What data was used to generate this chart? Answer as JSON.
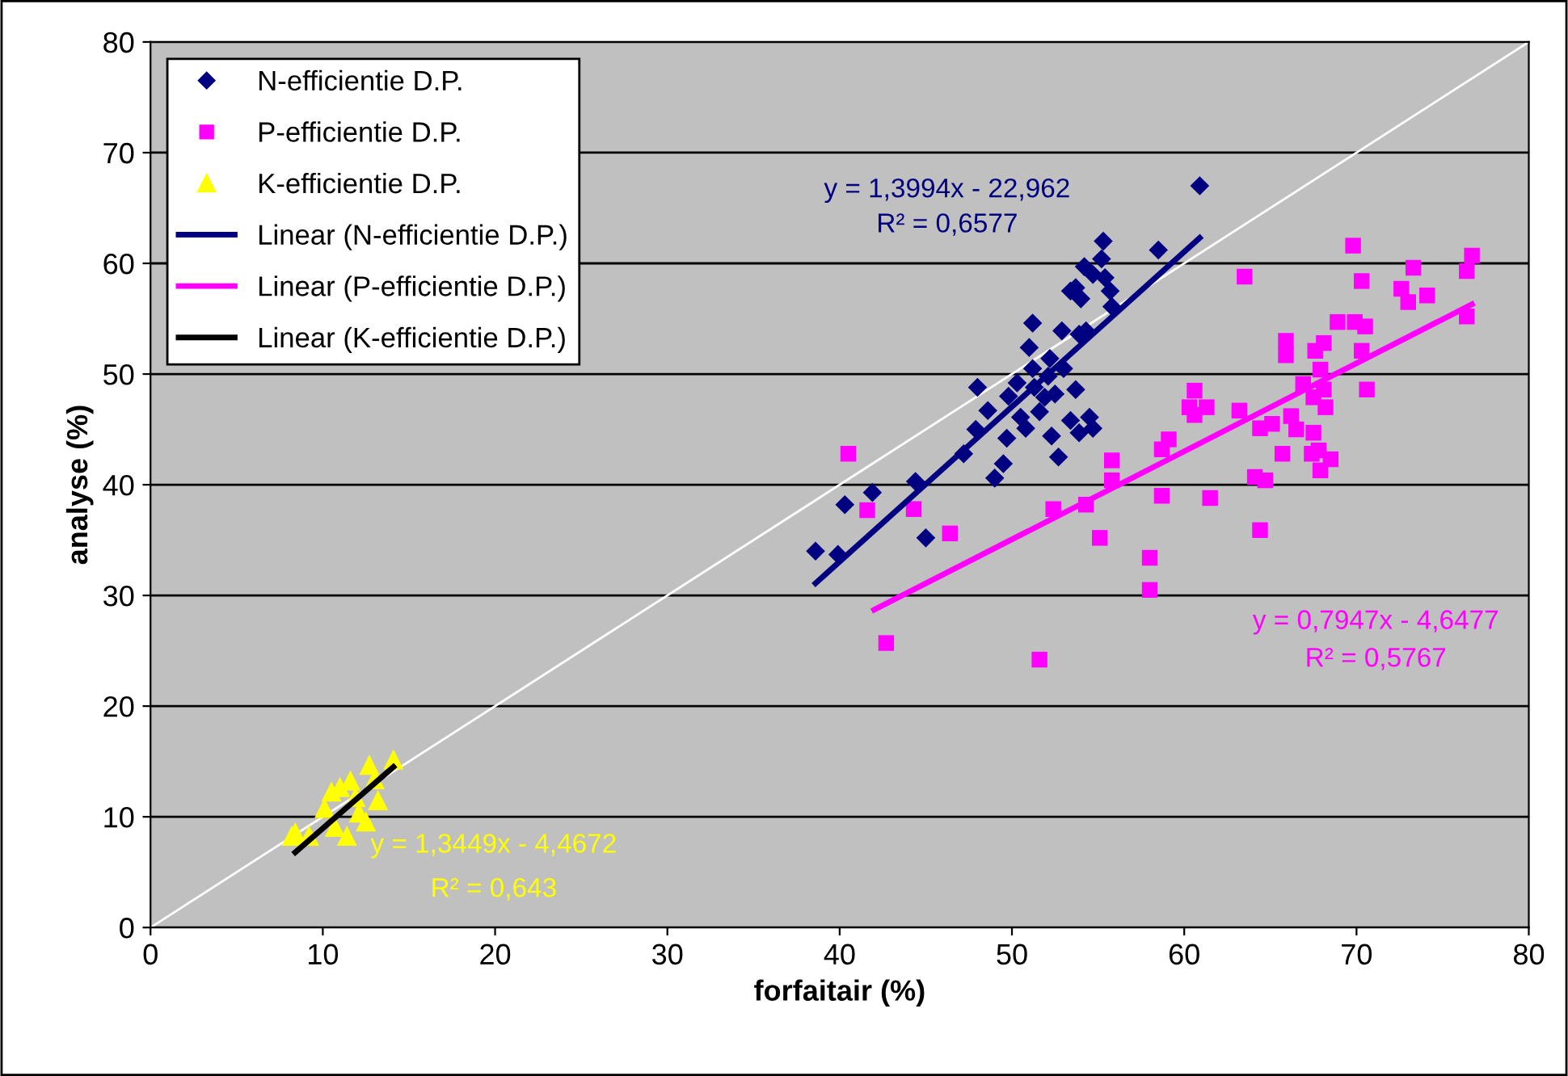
{
  "chart_data": {
    "type": "scatter",
    "xlabel": "forfaitair (%)",
    "ylabel": "analyse (%)",
    "xlim": [
      0,
      80
    ],
    "ylim": [
      0,
      80
    ],
    "xticks": [
      0,
      10,
      20,
      30,
      40,
      50,
      60,
      70,
      80
    ],
    "yticks": [
      0,
      10,
      20,
      30,
      40,
      50,
      60,
      70,
      80
    ],
    "grid": "y",
    "legend": "top left",
    "series": [
      {
        "name": "N-efficientie D.P.",
        "marker": "diamond",
        "color": "#000080",
        "x": [
          38.6,
          39.9,
          40.3,
          41.9,
          44.4,
          45.0,
          47.2,
          47.9,
          48.0,
          48.6,
          49.0,
          49.5,
          49.7,
          49.8,
          50.3,
          50.5,
          50.8,
          51.0,
          51.2,
          51.2,
          51.3,
          51.6,
          51.9,
          52.1,
          52.2,
          52.3,
          52.5,
          52.7,
          52.9,
          53.0,
          53.4,
          53.4,
          53.7,
          53.9,
          53.7,
          53.9,
          54.3,
          54.5,
          54.7,
          54.0,
          54.2,
          54.7,
          55.3,
          55.2,
          55.4,
          55.7,
          58.5,
          60.9,
          55.8
        ],
        "values": [
          34.0,
          33.7,
          38.2,
          39.3,
          40.3,
          35.2,
          42.8,
          45.0,
          48.8,
          46.7,
          40.6,
          41.9,
          44.2,
          48.0,
          49.2,
          46.1,
          45.1,
          52.4,
          54.6,
          50.5,
          48.8,
          46.6,
          47.9,
          49.8,
          51.4,
          44.4,
          48.2,
          42.5,
          53.9,
          50.5,
          45.8,
          57.5,
          57.8,
          53.6,
          48.6,
          44.7,
          53.9,
          46.1,
          45.1,
          56.8,
          59.7,
          59.0,
          62.0,
          60.4,
          58.7,
          57.5,
          61.2,
          67.0,
          56.1
        ]
      },
      {
        "name": "P-efficientie D.P.",
        "marker": "square",
        "color": "#ff00ff",
        "x": [
          40.5,
          41.6,
          42.7,
          46.4,
          44.3,
          52.4,
          51.6,
          54.3,
          55.1,
          55.8,
          55.8,
          58.0,
          58.0,
          58.7,
          58.7,
          59.1,
          60.6,
          60.3,
          61.3,
          60.6,
          61.5,
          69.8,
          63.5,
          73.3,
          76.7,
          76.4,
          70.3,
          72.6,
          74.1,
          73.0,
          76.4,
          68.9,
          69.9,
          70.5,
          65.9,
          65.9,
          68.1,
          67.6,
          70.3,
          67.9,
          66.9,
          68.1,
          67.5,
          70.6,
          68.2,
          63.2,
          66.2,
          65.1,
          64.4,
          66.5,
          67.5,
          65.7,
          67.4,
          67.8,
          68.5,
          67.9,
          64.1,
          64.7,
          64.4
        ],
        "values": [
          42.8,
          37.7,
          25.7,
          35.6,
          37.8,
          37.8,
          24.2,
          38.2,
          35.2,
          42.2,
          40.4,
          33.4,
          30.5,
          43.2,
          39.0,
          44.1,
          48.5,
          47.0,
          47.0,
          46.3,
          38.8,
          61.6,
          58.8,
          59.6,
          60.7,
          59.3,
          58.4,
          57.7,
          57.1,
          56.5,
          55.2,
          54.7,
          54.7,
          54.3,
          53.0,
          51.7,
          52.8,
          52.1,
          52.1,
          50.4,
          49.1,
          48.6,
          47.9,
          48.6,
          47.0,
          46.7,
          46.2,
          45.5,
          45.1,
          45.0,
          44.7,
          42.8,
          42.8,
          43.1,
          42.3,
          41.3,
          40.7,
          40.4,
          35.9
        ]
      },
      {
        "name": "K-efficientie D.P.",
        "marker": "triangle",
        "color": "#ffff00",
        "x": [
          8.4,
          9.2,
          10.1,
          10.7,
          11.0,
          11.4,
          11.6,
          12.1,
          12.7,
          13.2,
          12.5,
          14.1,
          10.5,
          11.9,
          13.0,
          8.2
        ],
        "values": [
          8.6,
          8.3,
          10.8,
          9.1,
          12.7,
          8.3,
          13.3,
          10.4,
          14.7,
          11.5,
          9.6,
          15.2,
          12.3,
          11.8,
          13.4,
          8.3
        ]
      },
      {
        "name": "Linear (N-efficientie D.P.)",
        "type": "line",
        "line_style": "solid",
        "color": "#000080",
        "x": [
          38.6,
          60.9
        ],
        "values": [
          31.1,
          62.3
        ]
      },
      {
        "name": "Linear (P-efficientie D.P.)",
        "type": "line",
        "line_style": "solid",
        "color": "#ff00ff",
        "x": [
          42.0,
          76.7
        ],
        "values": [
          28.7,
          56.3
        ]
      },
      {
        "name": "Linear (K-efficientie D.P.)",
        "type": "line",
        "line_style": "solid",
        "color": "#000000",
        "x": [
          8.4,
          14.1
        ],
        "values": [
          6.8,
          14.5
        ]
      },
      {
        "type": "line",
        "line_style": "solid",
        "color": "#ffffff",
        "x": [
          0,
          80
        ],
        "values": [
          0,
          80
        ]
      }
    ],
    "annotations": [
      "y = 1,3994x - 22,962",
      "R² = 0,6577",
      "y = 0,7947x - 4,6477",
      "R² = 0,5767",
      "y = 1,3449x - 4,4672",
      "R² = 0,643"
    ]
  }
}
